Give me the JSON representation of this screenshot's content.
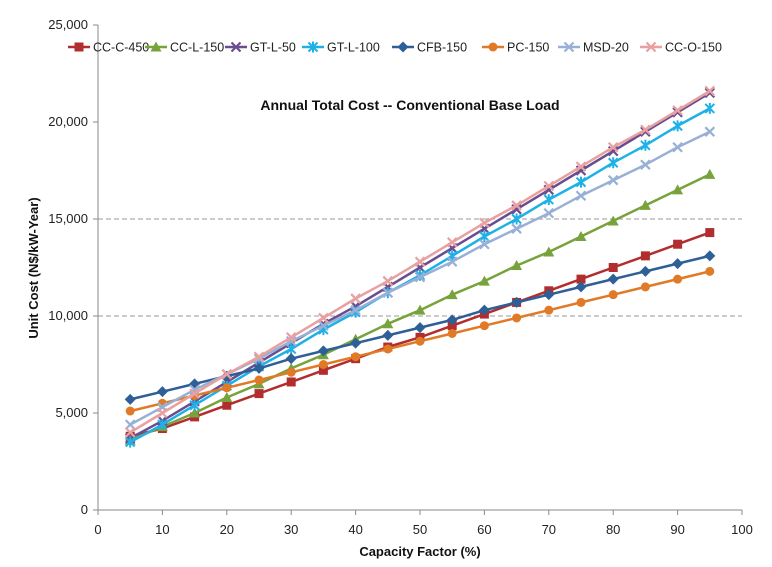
{
  "chart_data": {
    "type": "line",
    "title": "Annual Total Cost -- Conventional Base Load",
    "xlabel": "Capacity Factor (%)",
    "ylabel": "Unit Cost (N$/kW-Year)",
    "xlim": [
      0,
      100
    ],
    "ylim": [
      0,
      25000
    ],
    "x_ticks": [
      "0",
      "10",
      "20",
      "30",
      "40",
      "50",
      "60",
      "70",
      "80",
      "90",
      "100"
    ],
    "y_ticks": [
      "0",
      "5,000",
      "10,000",
      "15,000",
      "20,000",
      "25,000"
    ],
    "grid": "horizontal dashed at 10,000 and 15,000",
    "legend_position": "top",
    "x": [
      5,
      10,
      15,
      20,
      25,
      30,
      35,
      40,
      45,
      50,
      55,
      60,
      65,
      70,
      75,
      80,
      85,
      90,
      95
    ],
    "series": [
      {
        "name": "CC-C-450",
        "color": "#b22d2d",
        "marker": "square",
        "values": [
          3800,
          4200,
          4800,
          5400,
          6000,
          6600,
          7200,
          7800,
          8400,
          8900,
          9500,
          10100,
          10700,
          11300,
          11900,
          12500,
          13100,
          13700,
          14300
        ]
      },
      {
        "name": "CC-L-150",
        "color": "#77a23c",
        "marker": "triangle",
        "values": [
          3600,
          4300,
          5000,
          5800,
          6500,
          7300,
          8000,
          8800,
          9600,
          10300,
          11100,
          11800,
          12600,
          13300,
          14100,
          14900,
          15700,
          16500,
          17300
        ]
      },
      {
        "name": "GT-L-50",
        "color": "#6a4d8f",
        "marker": "x",
        "values": [
          3700,
          4600,
          5600,
          6600,
          7600,
          8600,
          9600,
          10500,
          11500,
          12500,
          13500,
          14500,
          15500,
          16500,
          17500,
          18500,
          19500,
          20500,
          21500
        ]
      },
      {
        "name": "GT-L-100",
        "color": "#1fb1e6",
        "marker": "star",
        "values": [
          3500,
          4400,
          5400,
          6400,
          7400,
          8300,
          9300,
          10200,
          11200,
          12100,
          13100,
          14100,
          15000,
          16000,
          16900,
          17900,
          18800,
          19800,
          20700
        ]
      },
      {
        "name": "CFB-150",
        "color": "#2f5f97",
        "marker": "diamond",
        "values": [
          5700,
          6100,
          6500,
          6900,
          7300,
          7800,
          8200,
          8600,
          9000,
          9400,
          9800,
          10300,
          10700,
          11100,
          11500,
          11900,
          12300,
          12700,
          13100
        ]
      },
      {
        "name": "PC-150",
        "color": "#e07a26",
        "marker": "circle",
        "values": [
          5100,
          5500,
          5900,
          6300,
          6700,
          7100,
          7500,
          7900,
          8300,
          8700,
          9100,
          9500,
          9900,
          10300,
          10700,
          11100,
          11500,
          11900,
          12300
        ]
      },
      {
        "name": "MSD-20",
        "color": "#98b0d6",
        "marker": "x",
        "values": [
          4400,
          5300,
          6200,
          7000,
          7800,
          8700,
          9500,
          10300,
          11200,
          12000,
          12800,
          13700,
          14500,
          15300,
          16200,
          17000,
          17800,
          18700,
          19500
        ]
      },
      {
        "name": "CC-O-150",
        "color": "#e8a0a0",
        "marker": "x",
        "values": [
          4000,
          5000,
          6000,
          7000,
          7900,
          8900,
          9900,
          10900,
          11800,
          12800,
          13800,
          14800,
          15700,
          16700,
          17700,
          18700,
          19600,
          20600,
          21600
        ]
      }
    ]
  }
}
